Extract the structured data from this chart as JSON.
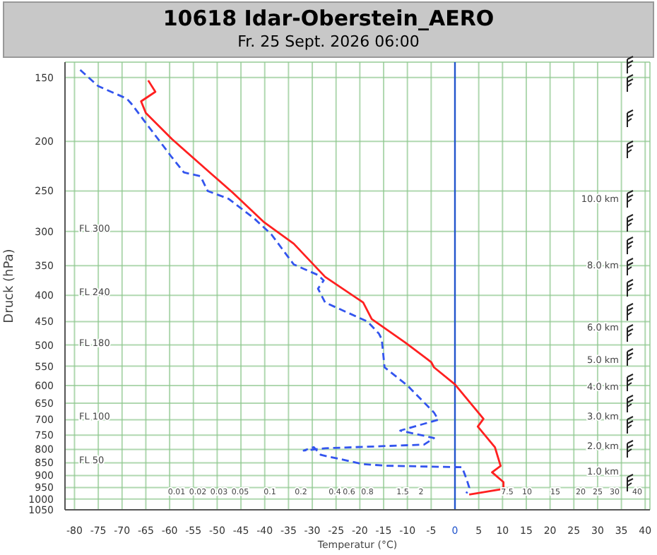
{
  "chart_data": {
    "type": "line",
    "title": "10618 Idar-Oberstein_AERO",
    "subtitle": "Fr. 25 Sept. 2026 06:00",
    "xlabel": "Temperatur (°C)",
    "ylabel": "Druck (hPa)",
    "xlim": [
      -82,
      41
    ],
    "xticks": [
      -80,
      -75,
      -70,
      -65,
      -60,
      -55,
      -50,
      -45,
      -40,
      -35,
      -30,
      -25,
      -20,
      -15,
      -10,
      -5,
      0,
      5,
      10,
      15,
      20,
      25,
      30,
      35,
      40
    ],
    "ylim": [
      1050,
      140
    ],
    "yticks": [
      150,
      200,
      250,
      300,
      350,
      400,
      450,
      500,
      550,
      600,
      650,
      700,
      750,
      800,
      850,
      900,
      950,
      1000,
      1050
    ],
    "grid": true,
    "marker": "none",
    "log": "y",
    "series": [
      {
        "color": "#ff2020",
        "line_style": "solid",
        "x": [
          -64.5,
          -63,
          -66,
          -65,
          -59.5,
          -51.1,
          -46.7,
          -40.1,
          -33.9,
          -27.3,
          -19.3,
          -17.5,
          -10.4,
          -5,
          -4.4,
          0,
          6,
          4.8,
          8.4,
          9.6,
          7.8,
          10.2,
          10.2,
          3
        ],
        "values": [
          152,
          160,
          167,
          176,
          198,
          232,
          252,
          288,
          317,
          368,
          413,
          445,
          495,
          540,
          553,
          597,
          697,
          722,
          792,
          862,
          887,
          927,
          956,
          980
        ]
      },
      {
        "color": "#3355ee",
        "line_style": "dashed",
        "x": [
          -78.8,
          -75,
          -69,
          -68,
          -65.4,
          -59.5,
          -57,
          -53.5,
          -52,
          -47.6,
          -42.2,
          -38.6,
          -33.9,
          -28.8,
          -27.6,
          -28.8,
          -27.3,
          -18.4,
          -16,
          -15.4,
          -14.8,
          -10,
          -4.4,
          -3.5,
          -11.5,
          -4.4,
          -6.5,
          -27.3,
          -31.8,
          -29.7,
          -28.2,
          -19.3,
          -14.5,
          1.5,
          2.4,
          3,
          2.4
        ],
        "values": [
          145,
          156,
          165,
          169,
          182,
          215,
          230,
          234,
          250,
          259,
          283,
          304,
          348,
          365,
          374,
          388,
          413,
          450,
          475,
          487,
          553,
          600,
          678,
          700,
          735,
          760,
          783,
          796,
          804,
          792,
          820,
          855,
          861,
          867,
          912,
          950,
          975
        ]
      }
    ],
    "ref_lines": [
      {
        "axis": "x",
        "value": 0,
        "color": "#2255cc"
      }
    ],
    "annotations": [
      "FL 300",
      "FL 240",
      "FL 180",
      "FL 100",
      "FL 50",
      "10.0 km",
      "8.0 km",
      "6.0 km",
      "5.0 km",
      "4.0 km",
      "3.0 km",
      "2.0 km",
      "1.0 km",
      "0.01",
      "0.02",
      "0.03",
      "0.05",
      "0.1",
      "0.2",
      "0.4",
      "0.6",
      "0.8",
      "1.5",
      "2",
      "7.5",
      "10",
      "15",
      "20",
      "25",
      "30",
      "40"
    ]
  }
}
